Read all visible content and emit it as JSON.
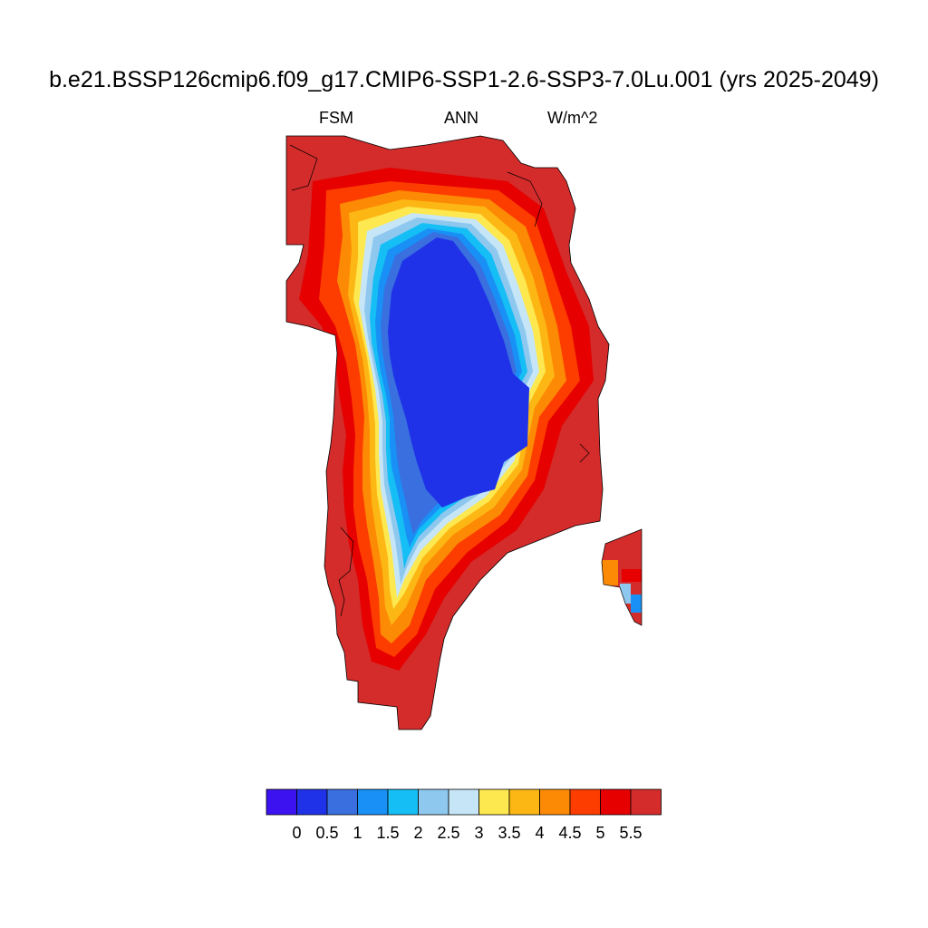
{
  "title": "b.e21.BSSP126cmip6.f09_g17.CMIP6-SSP1-2.6-SSP3-7.0Lu.001 (yrs 2025-2049)",
  "subtitle": {
    "left": "FSM",
    "center": "ANN",
    "right": "W/m^2"
  },
  "colorbar": {
    "colors": [
      "#3d12f0",
      "#1f32e8",
      "#3a6fe0",
      "#1890f5",
      "#15bef5",
      "#8ec8ef",
      "#c6e6f7",
      "#fde84f",
      "#fdb714",
      "#fd8a05",
      "#fd3c00",
      "#e60000",
      "#d42b2b"
    ],
    "labels": [
      "0",
      "0.5",
      "1",
      "1.5",
      "2",
      "2.5",
      "3",
      "3.5",
      "4",
      "4.5",
      "5",
      "5.5"
    ]
  }
}
